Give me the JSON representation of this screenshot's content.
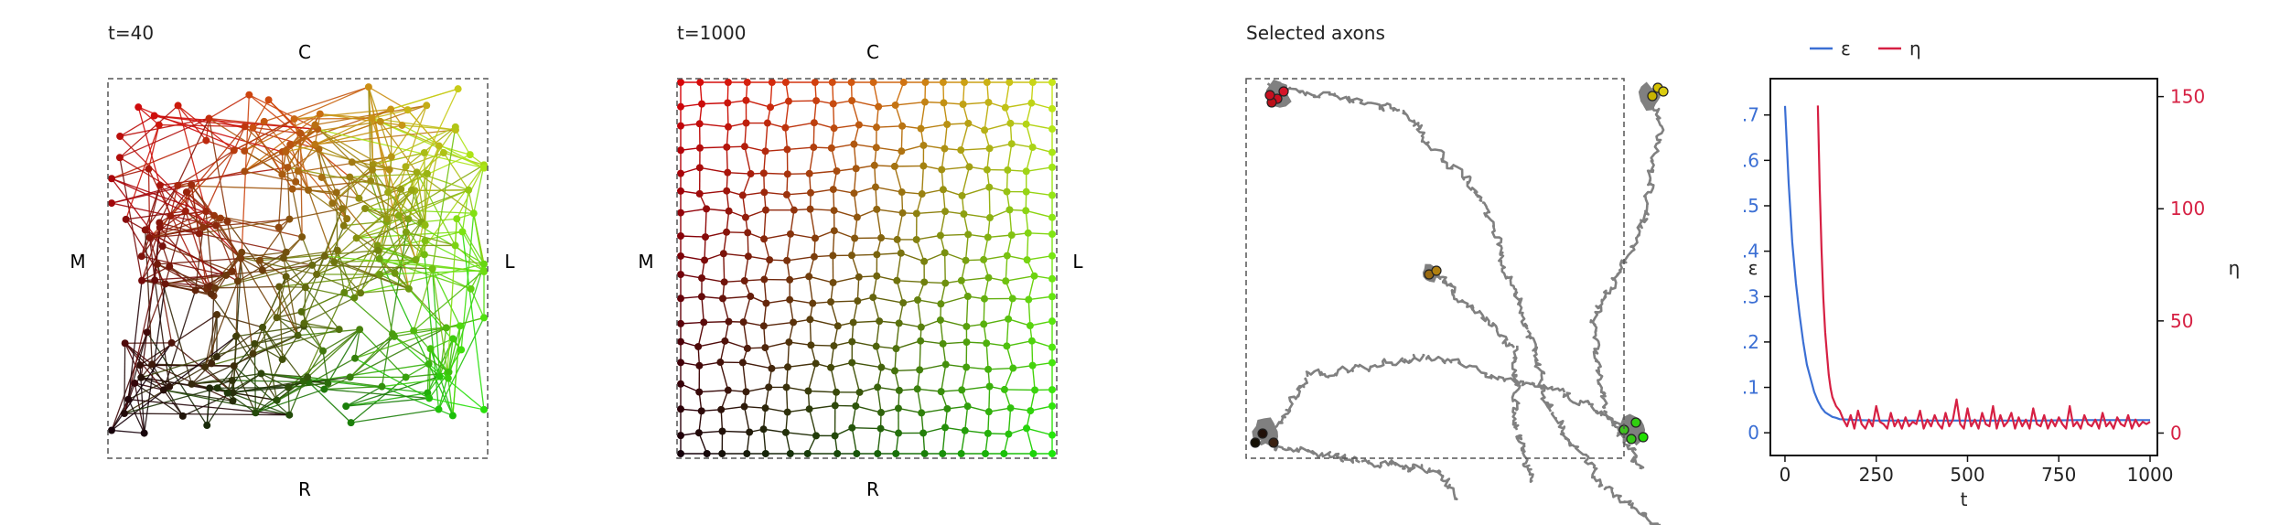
{
  "panels": [
    {
      "title": "t=40",
      "labels": {
        "top": "C",
        "bottom": "R",
        "left": "M",
        "right": "L"
      }
    },
    {
      "title": "t=1000",
      "labels": {
        "top": "C",
        "bottom": "R",
        "left": "M",
        "right": "L"
      }
    },
    {
      "title": "Selected axons"
    }
  ],
  "colors": {
    "axon": "#808080",
    "eps": "#3b6fd4",
    "eta": "#d62043",
    "box": "#555555"
  },
  "chart_data": [
    {
      "type": "line",
      "xlabel": "t",
      "ylabel_left": "ε",
      "ylabel_right": "η",
      "xlim": [
        -40,
        1020
      ],
      "ylim_left": [
        -0.05,
        0.78
      ],
      "ylim_right": [
        -10,
        158
      ],
      "x_ticks": [
        0,
        250,
        500,
        750,
        1000
      ],
      "x_tick_labels": [
        "0",
        "250",
        "500",
        "750",
        "1000"
      ],
      "y_left_ticks": [
        0,
        0.1,
        0.2,
        0.3,
        0.4,
        0.5,
        0.6,
        0.7
      ],
      "y_left_tick_labels": [
        "0",
        ".1",
        ".2",
        ".3",
        ".4",
        ".5",
        ".6",
        ".7"
      ],
      "y_right_ticks": [
        0,
        50,
        100,
        150
      ],
      "y_right_tick_labels": [
        "0",
        "50",
        "100",
        "150"
      ],
      "legend": "top-left",
      "series": [
        {
          "name": "ε",
          "axis": "left",
          "x": [
            0,
            10,
            20,
            30,
            40,
            50,
            60,
            70,
            80,
            90,
            100,
            110,
            120,
            130,
            140,
            150,
            175,
            200,
            250,
            300,
            400,
            500,
            600,
            700,
            800,
            900,
            1000
          ],
          "y": [
            0.72,
            0.55,
            0.42,
            0.33,
            0.26,
            0.2,
            0.15,
            0.12,
            0.09,
            0.07,
            0.055,
            0.045,
            0.04,
            0.035,
            0.033,
            0.03,
            0.029,
            0.028,
            0.027,
            0.027,
            0.027,
            0.027,
            0.027,
            0.027,
            0.028,
            0.028,
            0.028
          ]
        },
        {
          "name": "η",
          "axis": "right",
          "x": [
            90,
            95,
            100,
            105,
            110,
            115,
            120,
            125,
            130,
            135,
            140,
            150,
            160,
            170,
            180,
            190,
            200,
            210,
            220,
            230,
            240,
            250,
            260,
            270,
            280,
            290,
            300,
            310,
            320,
            330,
            340,
            350,
            360,
            370,
            380,
            390,
            400,
            410,
            420,
            430,
            440,
            450,
            460,
            470,
            480,
            490,
            500,
            510,
            520,
            530,
            540,
            550,
            560,
            570,
            580,
            590,
            600,
            610,
            620,
            630,
            640,
            650,
            660,
            670,
            680,
            690,
            700,
            710,
            720,
            730,
            740,
            750,
            760,
            770,
            780,
            790,
            800,
            810,
            820,
            830,
            840,
            850,
            860,
            870,
            880,
            890,
            900,
            910,
            920,
            930,
            940,
            950,
            960,
            970,
            980,
            990,
            1000
          ],
          "y": [
            146,
            110,
            82,
            60,
            45,
            35,
            26,
            20,
            16,
            14,
            12,
            10,
            6,
            3,
            8,
            2,
            10,
            4,
            2,
            6,
            3,
            12,
            5,
            4,
            2,
            9,
            3,
            6,
            2,
            7,
            3,
            5,
            4,
            10,
            2,
            6,
            3,
            8,
            4,
            2,
            9,
            3,
            6,
            15,
            4,
            2,
            11,
            3,
            6,
            2,
            9,
            4,
            3,
            12,
            2,
            8,
            3,
            5,
            9,
            2,
            7,
            3,
            6,
            2,
            11,
            4,
            3,
            8,
            2,
            6,
            3,
            7,
            4,
            2,
            12,
            3,
            5,
            2,
            8,
            4,
            3,
            6,
            2,
            9,
            3,
            5,
            2,
            7,
            4,
            3,
            8,
            2,
            6,
            3,
            5,
            4,
            5
          ]
        }
      ]
    }
  ]
}
